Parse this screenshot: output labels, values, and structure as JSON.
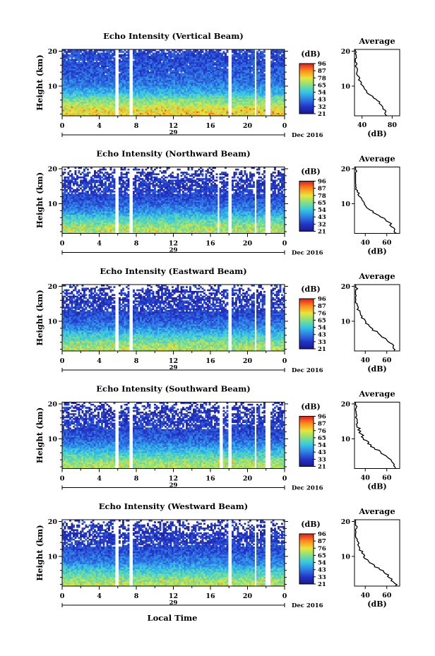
{
  "panels": [
    {
      "title": "Echo Intensity (Vertical Beam)",
      "colorbar_ticks": [
        "96",
        "87",
        "78",
        "65",
        "54",
        "43",
        "32",
        "21"
      ],
      "avg_xticks": [
        "40",
        "80"
      ]
    },
    {
      "title": "Echo Intensity (Northward Beam)",
      "colorbar_ticks": [
        "96",
        "87",
        "78",
        "65",
        "54",
        "43",
        "32",
        "21"
      ],
      "avg_xticks": [
        "40",
        "60"
      ]
    },
    {
      "title": "Echo Intensity (Eastward Beam)",
      "colorbar_ticks": [
        "96",
        "87",
        "76",
        "65",
        "54",
        "43",
        "33",
        "21"
      ],
      "avg_xticks": [
        "40",
        "60"
      ]
    },
    {
      "title": "Echo Intensity (Southward Beam)",
      "colorbar_ticks": [
        "96",
        "87",
        "76",
        "65",
        "54",
        "43",
        "33",
        "21"
      ],
      "avg_xticks": [
        "40",
        "60"
      ]
    },
    {
      "title": "Echo Intensity (Westward Beam)",
      "colorbar_ticks": [
        "96",
        "87",
        "76",
        "65",
        "54",
        "43",
        "33",
        "21"
      ],
      "avg_xticks": [
        "40",
        "60"
      ]
    }
  ],
  "common": {
    "ylabel": "Height (km)",
    "yticks": [
      "20",
      "10"
    ],
    "xticks": [
      "0",
      "4",
      "8",
      "12",
      "16",
      "20",
      "0"
    ],
    "date_day": "29",
    "date_month_year": "Dec 2016",
    "colorbar_unit": "(dB)",
    "avg_title": "Average",
    "avg_yticks": [
      "20",
      "10"
    ],
    "avg_xlabel": "(dB)",
    "xlabel": "Local Time"
  },
  "chart_data": [
    {
      "type": "heatmap",
      "title": "Echo Intensity (Vertical Beam)",
      "xlabel": "",
      "ylabel": "Height (km)",
      "x_range_hours": [
        0,
        24
      ],
      "ylim_km": [
        1.5,
        20.5
      ],
      "colorbar": {
        "label": "(dB)",
        "ticks": [
          96,
          87,
          78,
          65,
          54,
          43,
          32,
          21
        ],
        "range": [
          21,
          96
        ]
      },
      "data_gaps_hours": [
        [
          5.7,
          6.0
        ],
        [
          7.3,
          7.7
        ],
        [
          17.9,
          18.2
        ],
        [
          20.7,
          21.0
        ],
        [
          22.0,
          22.4
        ]
      ],
      "profile_height_km": [
        2,
        4,
        6,
        8,
        10,
        12,
        14,
        16,
        18,
        20
      ],
      "profile_db": [
        72,
        68,
        60,
        48,
        40,
        36,
        33,
        32,
        31,
        30
      ],
      "average": {
        "xlim": [
          30,
          90
        ],
        "ticks": [
          40,
          80
        ]
      }
    },
    {
      "type": "heatmap",
      "title": "Echo Intensity (Northward Beam)",
      "xlabel": "",
      "ylabel": "Height (km)",
      "x_range_hours": [
        0,
        24
      ],
      "ylim_km": [
        1.5,
        20.5
      ],
      "colorbar": {
        "label": "(dB)",
        "ticks": [
          96,
          87,
          78,
          65,
          54,
          43,
          32,
          21
        ],
        "range": [
          21,
          96
        ]
      },
      "data_gaps_hours": [
        [
          5.7,
          6.0
        ],
        [
          7.3,
          7.7
        ],
        [
          16.7,
          16.9
        ],
        [
          17.9,
          18.2
        ],
        [
          20.7,
          21.0
        ],
        [
          22.0,
          22.4
        ]
      ],
      "profile_height_km": [
        2,
        4,
        6,
        8,
        10,
        12,
        14,
        16,
        18,
        20
      ],
      "profile_db": [
        68,
        64,
        56,
        45,
        39,
        35,
        32,
        31,
        30,
        30
      ],
      "average": {
        "xlim": [
          30,
          72
        ],
        "ticks": [
          40,
          60
        ]
      }
    },
    {
      "type": "heatmap",
      "title": "Echo Intensity (Eastward Beam)",
      "xlabel": "",
      "ylabel": "Height (km)",
      "x_range_hours": [
        0,
        24
      ],
      "ylim_km": [
        1.5,
        20.5
      ],
      "colorbar": {
        "label": "(dB)",
        "ticks": [
          96,
          87,
          76,
          65,
          54,
          43,
          33,
          21
        ],
        "range": [
          21,
          96
        ]
      },
      "data_gaps_hours": [
        [
          5.7,
          6.0
        ],
        [
          7.3,
          7.7
        ],
        [
          17.9,
          18.2
        ],
        [
          20.7,
          21.0
        ],
        [
          22.0,
          22.4
        ]
      ],
      "profile_height_km": [
        2,
        4,
        6,
        8,
        10,
        12,
        14,
        16,
        18,
        20
      ],
      "profile_db": [
        68,
        63,
        55,
        45,
        39,
        35,
        32,
        31,
        30,
        30
      ],
      "average": {
        "xlim": [
          30,
          72
        ],
        "ticks": [
          40,
          60
        ]
      }
    },
    {
      "type": "heatmap",
      "title": "Echo Intensity (Southward Beam)",
      "xlabel": "",
      "ylabel": "Height (km)",
      "x_range_hours": [
        0,
        24
      ],
      "ylim_km": [
        1.5,
        20.5
      ],
      "colorbar": {
        "label": "(dB)",
        "ticks": [
          96,
          87,
          76,
          65,
          54,
          43,
          33,
          21
        ],
        "range": [
          21,
          96
        ]
      },
      "data_gaps_hours": [
        [
          5.7,
          6.0
        ],
        [
          7.3,
          7.7
        ],
        [
          17.0,
          17.3
        ],
        [
          17.9,
          18.2
        ],
        [
          20.7,
          21.0
        ],
        [
          22.0,
          22.4
        ]
      ],
      "profile_height_km": [
        2,
        4,
        6,
        8,
        10,
        12,
        14,
        16,
        18,
        20
      ],
      "profile_db": [
        68,
        63,
        55,
        45,
        39,
        35,
        33,
        31,
        30,
        30
      ],
      "average": {
        "xlim": [
          30,
          72
        ],
        "ticks": [
          40,
          60
        ]
      }
    },
    {
      "type": "heatmap",
      "title": "Echo Intensity (Westward Beam)",
      "xlabel": "Local Time",
      "ylabel": "Height (km)",
      "x_range_hours": [
        0,
        24
      ],
      "ylim_km": [
        1.5,
        20.5
      ],
      "colorbar": {
        "label": "(dB)",
        "ticks": [
          96,
          87,
          76,
          65,
          54,
          43,
          33,
          21
        ],
        "range": [
          21,
          96
        ]
      },
      "data_gaps_hours": [
        [
          5.7,
          6.0
        ],
        [
          7.3,
          7.7
        ],
        [
          17.9,
          18.2
        ],
        [
          20.7,
          21.0
        ],
        [
          22.0,
          22.4
        ]
      ],
      "profile_height_km": [
        2,
        4,
        6,
        8,
        10,
        12,
        14,
        16,
        18,
        20
      ],
      "profile_db": [
        68,
        63,
        55,
        45,
        39,
        35,
        33,
        31,
        30,
        30
      ],
      "average": {
        "xlim": [
          30,
          72
        ],
        "ticks": [
          40,
          60
        ]
      }
    }
  ]
}
